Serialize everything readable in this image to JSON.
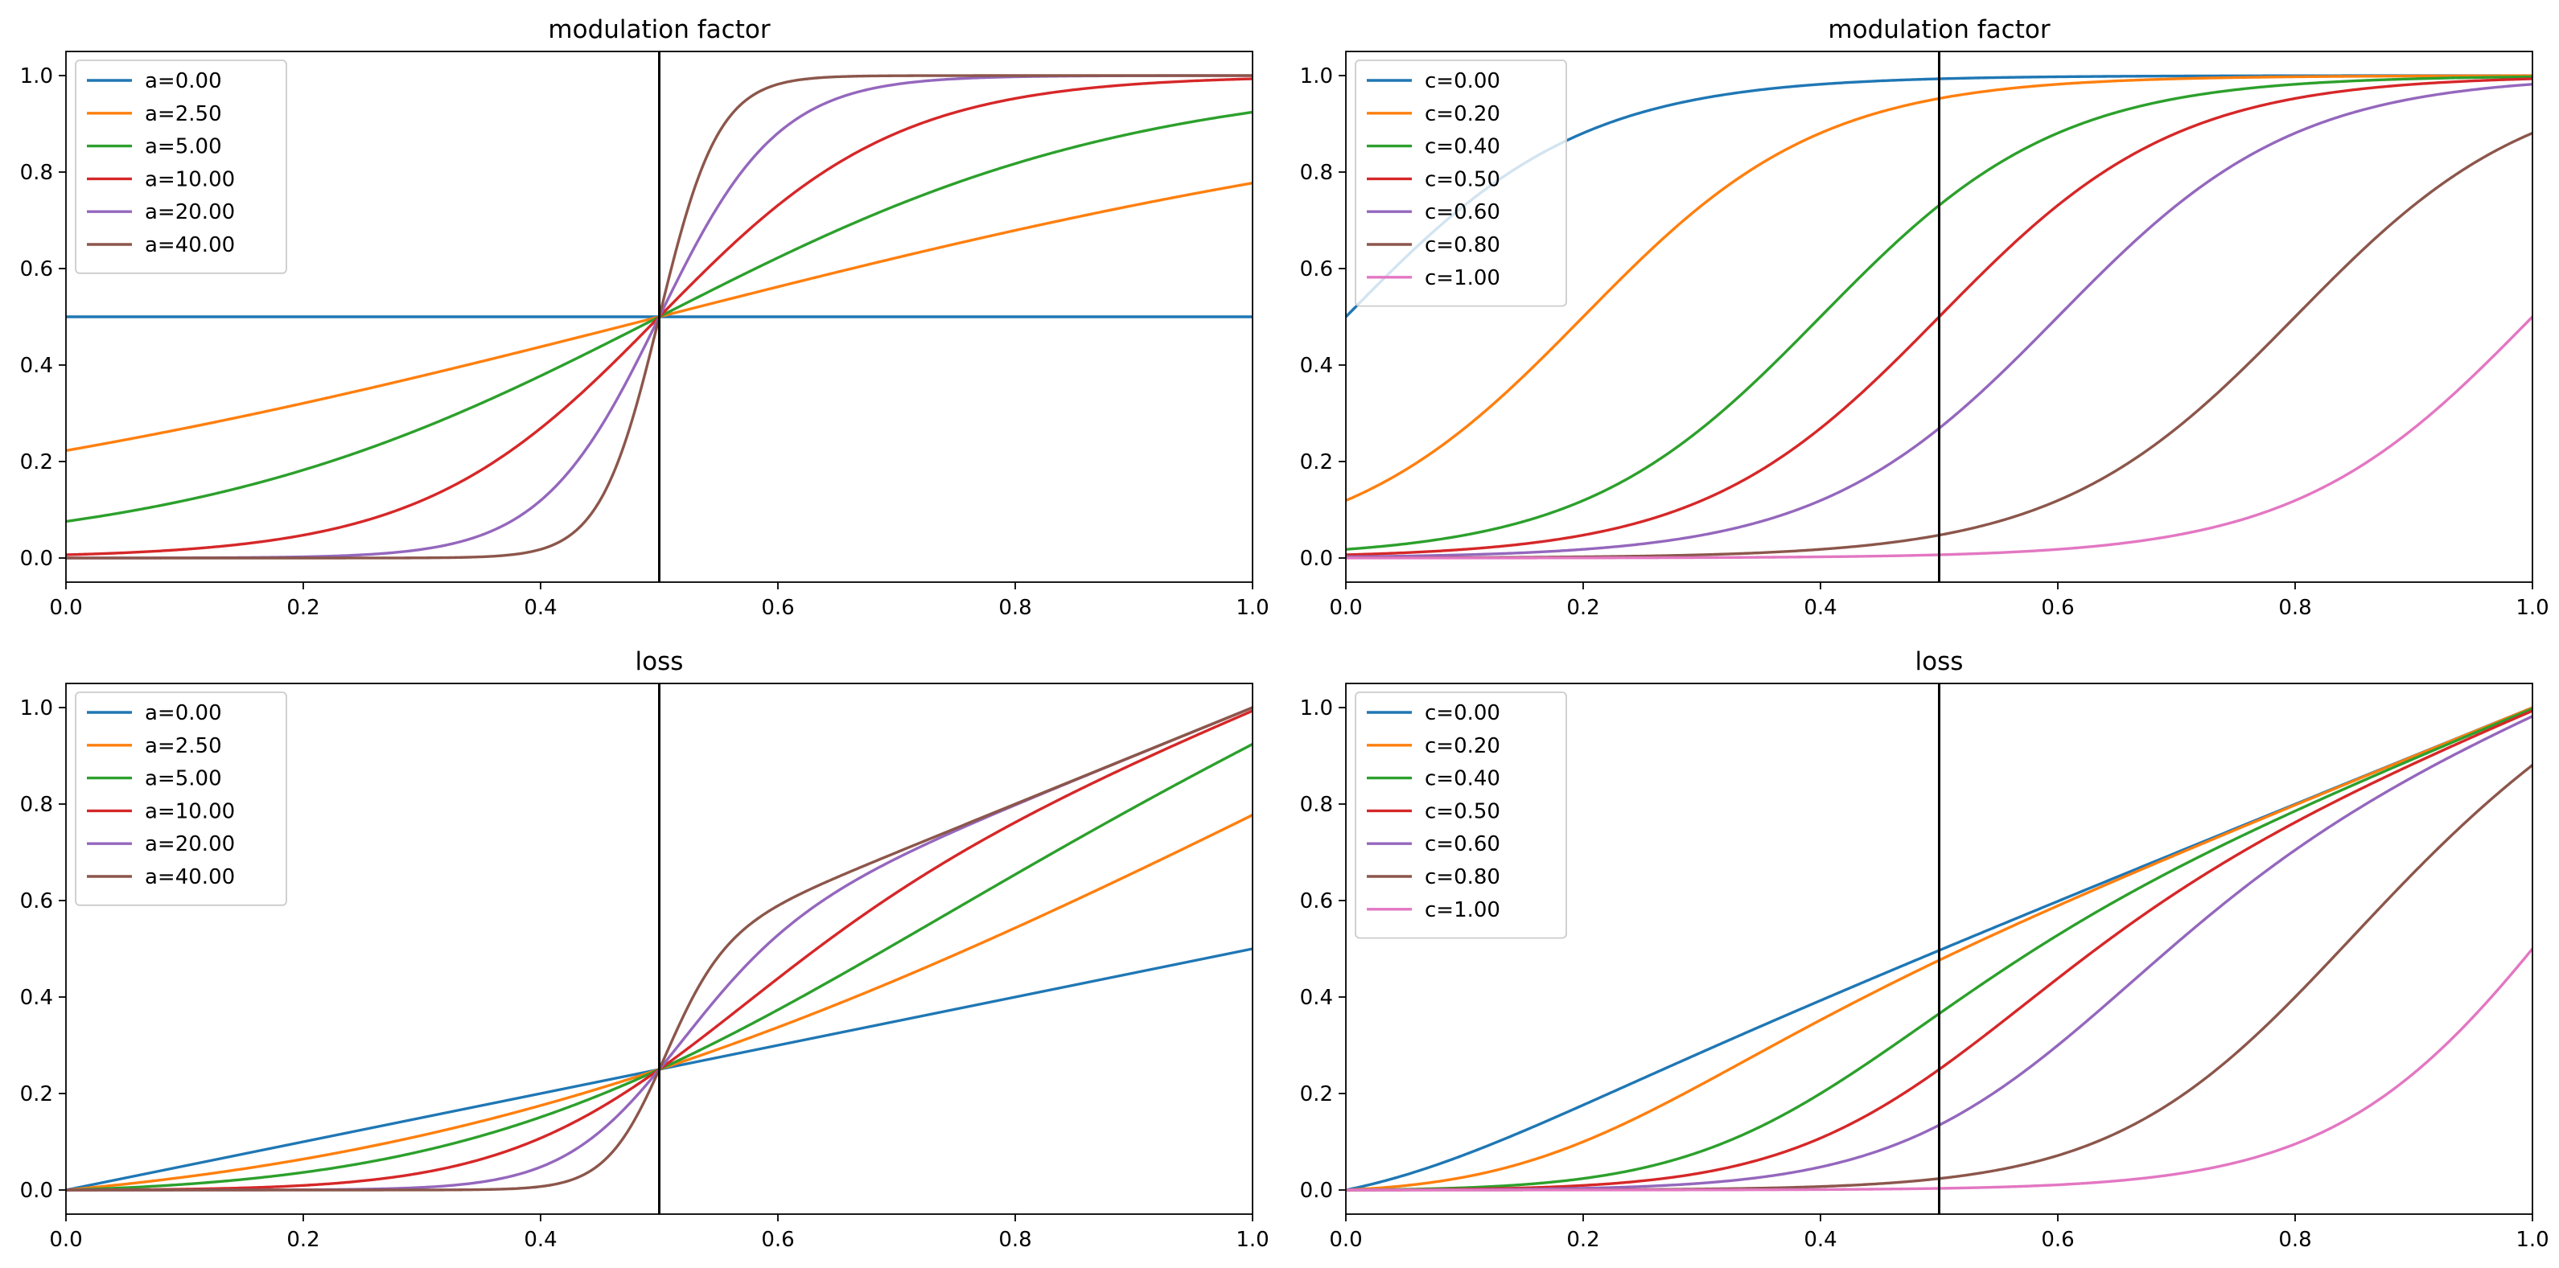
{
  "figure": {
    "background": "#ffffff"
  },
  "chart_data": [
    {
      "id": "mod-a",
      "type": "line",
      "title": "modulation factor",
      "xlabel": "",
      "ylabel": "",
      "xlim": [
        0,
        1
      ],
      "ylim": [
        -0.05,
        1.05
      ],
      "xticks": [
        0.0,
        0.2,
        0.4,
        0.6,
        0.8,
        1.0
      ],
      "yticks": [
        0.0,
        0.2,
        0.4,
        0.6,
        0.8,
        1.0
      ],
      "tick_format": 1,
      "legend": "top-left",
      "vline": 0.5,
      "formula": "modulation",
      "param": "a",
      "c": 0.5,
      "series": [
        {
          "name": "a=0.00",
          "value": 0,
          "color": "#1f77b4"
        },
        {
          "name": "a=2.50",
          "value": 2.5,
          "color": "#ff7f0e"
        },
        {
          "name": "a=5.00",
          "value": 5,
          "color": "#2ca02c"
        },
        {
          "name": "a=10.00",
          "value": 10,
          "color": "#d62728"
        },
        {
          "name": "a=20.00",
          "value": 20,
          "color": "#9467bd"
        },
        {
          "name": "a=40.00",
          "value": 40,
          "color": "#8c564b"
        }
      ]
    },
    {
      "id": "mod-c",
      "type": "line",
      "title": "modulation factor",
      "xlabel": "",
      "ylabel": "",
      "xlim": [
        0,
        1
      ],
      "ylim": [
        -0.05,
        1.05
      ],
      "xticks": [
        0.0,
        0.2,
        0.4,
        0.6,
        0.8,
        1.0
      ],
      "yticks": [
        0.0,
        0.2,
        0.4,
        0.6,
        0.8,
        1.0
      ],
      "tick_format": 1,
      "legend": "top-left",
      "vline": 0.5,
      "formula": "modulation",
      "param": "c",
      "a": 10,
      "series": [
        {
          "name": "c=0.00",
          "value": 0.0,
          "color": "#1f77b4"
        },
        {
          "name": "c=0.20",
          "value": 0.2,
          "color": "#ff7f0e"
        },
        {
          "name": "c=0.40",
          "value": 0.4,
          "color": "#2ca02c"
        },
        {
          "name": "c=0.50",
          "value": 0.5,
          "color": "#d62728"
        },
        {
          "name": "c=0.60",
          "value": 0.6,
          "color": "#9467bd"
        },
        {
          "name": "c=0.80",
          "value": 0.8,
          "color": "#8c564b"
        },
        {
          "name": "c=1.00",
          "value": 1.0,
          "color": "#e377c2"
        }
      ]
    },
    {
      "id": "loss-a",
      "type": "line",
      "title": "loss",
      "xlabel": "",
      "ylabel": "",
      "xlim": [
        0,
        1
      ],
      "ylim": [
        -0.05,
        1.05
      ],
      "xticks": [
        0.0,
        0.2,
        0.4,
        0.6,
        0.8,
        1.0
      ],
      "yticks": [
        0.0,
        0.2,
        0.4,
        0.6,
        0.8,
        1.0
      ],
      "tick_format": 1,
      "legend": "top-left",
      "vline": 0.5,
      "formula": "loss",
      "param": "a",
      "c": 0.5,
      "series": [
        {
          "name": "a=0.00",
          "value": 0,
          "color": "#1f77b4"
        },
        {
          "name": "a=2.50",
          "value": 2.5,
          "color": "#ff7f0e"
        },
        {
          "name": "a=5.00",
          "value": 5,
          "color": "#2ca02c"
        },
        {
          "name": "a=10.00",
          "value": 10,
          "color": "#d62728"
        },
        {
          "name": "a=20.00",
          "value": 20,
          "color": "#9467bd"
        },
        {
          "name": "a=40.00",
          "value": 40,
          "color": "#8c564b"
        }
      ]
    },
    {
      "id": "loss-c",
      "type": "line",
      "title": "loss",
      "xlabel": "",
      "ylabel": "",
      "xlim": [
        0,
        1
      ],
      "ylim": [
        -0.05,
        1.05
      ],
      "xticks": [
        0.0,
        0.2,
        0.4,
        0.6,
        0.8,
        1.0
      ],
      "yticks": [
        0.0,
        0.2,
        0.4,
        0.6,
        0.8,
        1.0
      ],
      "tick_format": 1,
      "legend": "top-left",
      "vline": 0.5,
      "formula": "loss",
      "param": "c",
      "a": 10,
      "series": [
        {
          "name": "c=0.00",
          "value": 0.0,
          "color": "#1f77b4"
        },
        {
          "name": "c=0.20",
          "value": 0.2,
          "color": "#ff7f0e"
        },
        {
          "name": "c=0.40",
          "value": 0.4,
          "color": "#2ca02c"
        },
        {
          "name": "c=0.50",
          "value": 0.5,
          "color": "#d62728"
        },
        {
          "name": "c=0.60",
          "value": 0.6,
          "color": "#9467bd"
        },
        {
          "name": "c=0.80",
          "value": 0.8,
          "color": "#8c564b"
        },
        {
          "name": "c=1.00",
          "value": 1.0,
          "color": "#e377c2"
        }
      ]
    }
  ]
}
